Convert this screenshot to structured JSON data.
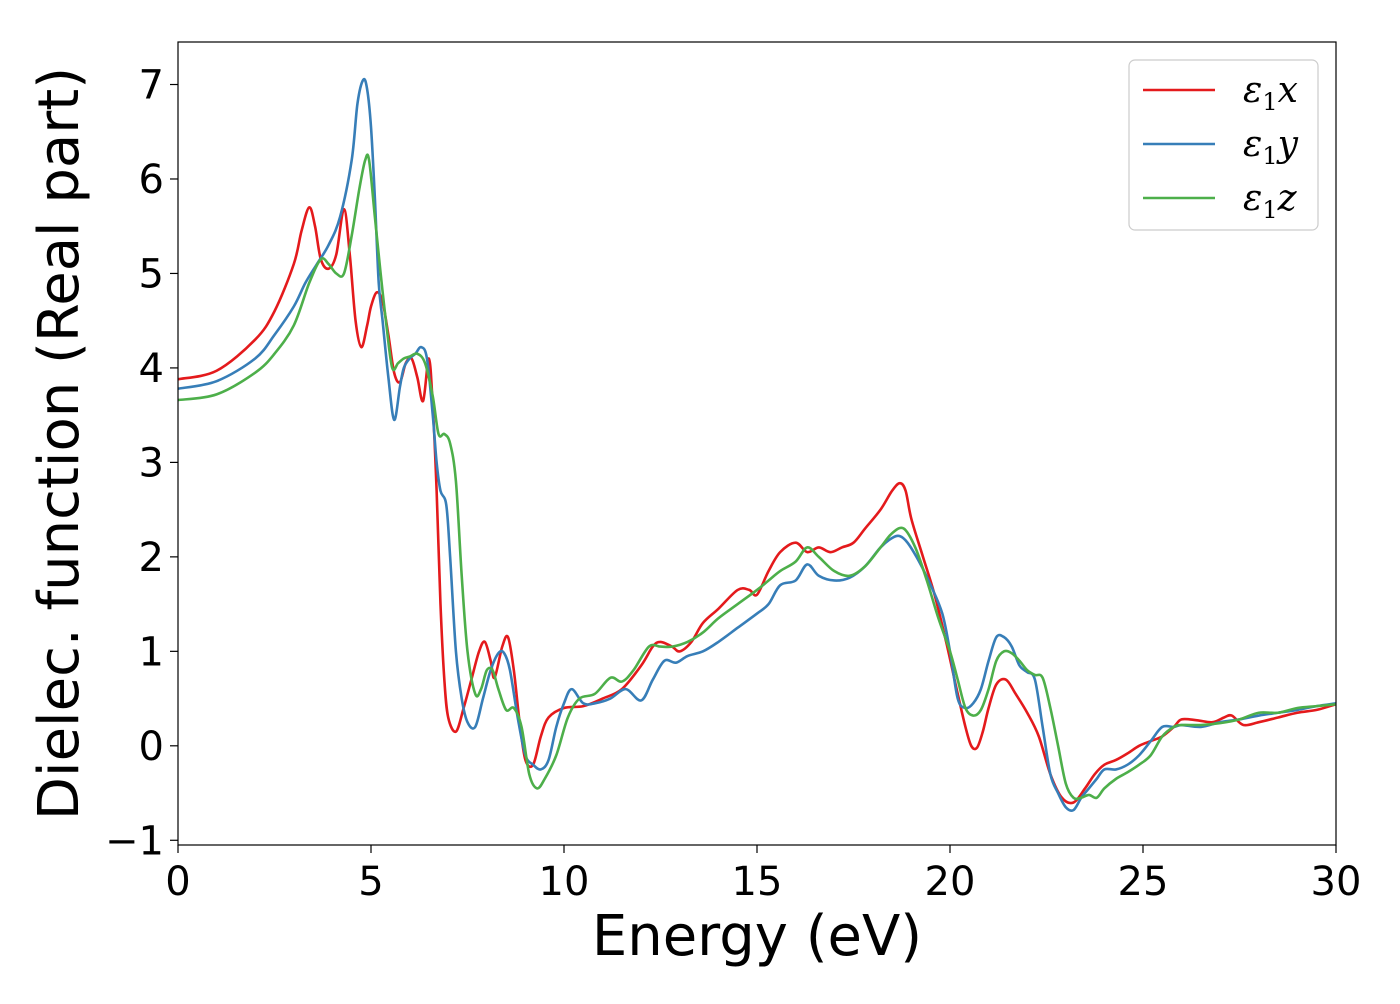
{
  "chart_data": {
    "type": "line",
    "title": "",
    "xlabel": "Energy (eV)",
    "ylabel": "Dielec. function (Real part)",
    "xlim": [
      0,
      30
    ],
    "ylim": [
      -1.05,
      7.45
    ],
    "xticks": [
      0,
      5,
      10,
      15,
      20,
      25,
      30
    ],
    "xtick_labels": [
      "0",
      "5",
      "10",
      "15",
      "20",
      "25",
      "30"
    ],
    "yticks": [
      -1,
      0,
      1,
      2,
      3,
      4,
      5,
      6,
      7
    ],
    "ytick_labels": [
      "−1",
      "0",
      "1",
      "2",
      "3",
      "4",
      "5",
      "6",
      "7"
    ],
    "grid": false,
    "legend_position": "top-right",
    "series": [
      {
        "name": "ε1x",
        "name_main": "ε",
        "name_sub": "1",
        "name_tail": "x",
        "color": "#e41a1c",
        "x": [
          0,
          1,
          2,
          2.5,
          3,
          3.2,
          3.4,
          3.55,
          3.7,
          3.9,
          4.1,
          4.3,
          4.45,
          4.6,
          4.75,
          4.9,
          5.0,
          5.15,
          5.3,
          5.45,
          5.6,
          5.75,
          5.9,
          6.05,
          6.2,
          6.35,
          6.5,
          6.6,
          6.7,
          6.8,
          6.9,
          7.0,
          7.2,
          7.4,
          7.6,
          7.8,
          7.95,
          8.1,
          8.2,
          8.4,
          8.55,
          8.7,
          8.85,
          9.0,
          9.2,
          9.4,
          9.6,
          10.0,
          10.5,
          11.0,
          11.5,
          12.0,
          12.3,
          12.5,
          12.8,
          13.0,
          13.3,
          13.6,
          14.0,
          14.5,
          14.8,
          15.0,
          15.3,
          15.6,
          16.0,
          16.3,
          16.6,
          16.9,
          17.2,
          17.5,
          17.8,
          18.2,
          18.5,
          18.7,
          18.85,
          19.0,
          19.3,
          19.6,
          19.9,
          20.2,
          20.4,
          20.55,
          20.7,
          20.85,
          21.0,
          21.2,
          21.45,
          21.7,
          22.0,
          22.3,
          22.6,
          22.9,
          23.2,
          23.5,
          23.75,
          24.0,
          24.3,
          24.6,
          24.9,
          25.2,
          25.5,
          25.8,
          26.0,
          26.4,
          26.8,
          27.1,
          27.3,
          27.6,
          28.0,
          28.5,
          29.0,
          29.5,
          30
        ],
        "y": [
          3.88,
          3.97,
          4.3,
          4.6,
          5.1,
          5.45,
          5.7,
          5.5,
          5.15,
          5.05,
          5.2,
          5.68,
          5.2,
          4.5,
          4.22,
          4.45,
          4.65,
          4.8,
          4.7,
          4.35,
          3.95,
          3.85,
          4.05,
          4.1,
          3.9,
          3.65,
          4.1,
          3.6,
          2.7,
          1.5,
          0.7,
          0.3,
          0.15,
          0.4,
          0.7,
          1.0,
          1.1,
          0.9,
          0.72,
          1.05,
          1.15,
          0.8,
          0.25,
          -0.15,
          -0.2,
          0.1,
          0.3,
          0.4,
          0.42,
          0.5,
          0.6,
          0.85,
          1.05,
          1.1,
          1.05,
          1.0,
          1.1,
          1.3,
          1.45,
          1.65,
          1.65,
          1.6,
          1.85,
          2.05,
          2.15,
          2.05,
          2.1,
          2.05,
          2.1,
          2.15,
          2.3,
          2.5,
          2.7,
          2.78,
          2.7,
          2.4,
          2.0,
          1.6,
          1.1,
          0.55,
          0.2,
          0.0,
          -0.02,
          0.15,
          0.4,
          0.65,
          0.7,
          0.55,
          0.35,
          0.1,
          -0.3,
          -0.55,
          -0.6,
          -0.45,
          -0.3,
          -0.2,
          -0.15,
          -0.08,
          0.0,
          0.05,
          0.1,
          0.2,
          0.28,
          0.27,
          0.25,
          0.3,
          0.32,
          0.22,
          0.25,
          0.3,
          0.35,
          0.38,
          0.44
        ]
      },
      {
        "name": "ε1y",
        "name_main": "ε",
        "name_sub": "1",
        "name_tail": "y",
        "color": "#377eb8",
        "x": [
          0,
          1,
          2,
          2.5,
          3,
          3.3,
          3.6,
          3.9,
          4.2,
          4.5,
          4.65,
          4.8,
          4.9,
          5.0,
          5.1,
          5.2,
          5.3,
          5.45,
          5.6,
          5.75,
          5.85,
          6.0,
          6.15,
          6.3,
          6.45,
          6.6,
          6.7,
          6.8,
          6.95,
          7.05,
          7.2,
          7.35,
          7.5,
          7.7,
          7.9,
          8.1,
          8.3,
          8.45,
          8.6,
          8.8,
          9.0,
          9.2,
          9.4,
          9.6,
          9.8,
          10.0,
          10.2,
          10.5,
          10.8,
          11.2,
          11.6,
          12.0,
          12.3,
          12.6,
          12.9,
          13.2,
          13.6,
          14.0,
          14.5,
          15.0,
          15.3,
          15.6,
          16.0,
          16.3,
          16.6,
          17.0,
          17.4,
          17.8,
          18.2,
          18.5,
          18.7,
          18.9,
          19.2,
          19.5,
          19.8,
          20.0,
          20.2,
          20.4,
          20.6,
          20.8,
          21.0,
          21.2,
          21.4,
          21.6,
          21.8,
          22.0,
          22.2,
          22.4,
          22.6,
          22.8,
          23.0,
          23.2,
          23.4,
          23.6,
          23.8,
          24.0,
          24.3,
          24.6,
          24.9,
          25.2,
          25.5,
          25.8,
          26.0,
          26.5,
          27.0,
          27.5,
          28.0,
          28.5,
          29.0,
          29.5,
          30
        ],
        "y": [
          3.78,
          3.86,
          4.1,
          4.35,
          4.65,
          4.9,
          5.1,
          5.3,
          5.6,
          6.2,
          6.8,
          7.05,
          6.95,
          6.55,
          5.8,
          4.9,
          4.5,
          3.9,
          3.45,
          3.8,
          4.0,
          4.1,
          4.15,
          4.22,
          4.1,
          3.5,
          3.0,
          2.7,
          2.55,
          2.0,
          1.0,
          0.5,
          0.25,
          0.2,
          0.5,
          0.8,
          0.98,
          0.98,
          0.8,
          0.3,
          -0.1,
          -0.2,
          -0.25,
          -0.15,
          0.2,
          0.45,
          0.6,
          0.45,
          0.45,
          0.5,
          0.6,
          0.48,
          0.7,
          0.9,
          0.88,
          0.95,
          1.0,
          1.1,
          1.25,
          1.4,
          1.5,
          1.7,
          1.75,
          1.92,
          1.8,
          1.75,
          1.78,
          1.9,
          2.1,
          2.2,
          2.22,
          2.15,
          1.95,
          1.7,
          1.4,
          1.0,
          0.5,
          0.4,
          0.45,
          0.6,
          0.9,
          1.15,
          1.15,
          1.05,
          0.85,
          0.78,
          0.7,
          0.2,
          -0.3,
          -0.5,
          -0.65,
          -0.68,
          -0.55,
          -0.45,
          -0.35,
          -0.25,
          -0.25,
          -0.2,
          -0.1,
          0.05,
          0.2,
          0.2,
          0.22,
          0.2,
          0.25,
          0.28,
          0.32,
          0.35,
          0.38,
          0.42,
          0.45
        ]
      },
      {
        "name": "ε1z",
        "name_main": "ε",
        "name_sub": "1",
        "name_tail": "z",
        "color": "#4daf4a",
        "x": [
          0,
          1,
          2,
          2.5,
          3,
          3.4,
          3.7,
          3.9,
          4.1,
          4.3,
          4.5,
          4.7,
          4.85,
          4.95,
          5.1,
          5.25,
          5.4,
          5.55,
          5.7,
          5.85,
          6.0,
          6.2,
          6.4,
          6.6,
          6.75,
          6.9,
          7.05,
          7.2,
          7.35,
          7.5,
          7.7,
          7.85,
          8.0,
          8.15,
          8.3,
          8.5,
          8.7,
          8.9,
          9.1,
          9.3,
          9.5,
          9.8,
          10.1,
          10.4,
          10.8,
          11.2,
          11.5,
          11.8,
          12.2,
          12.5,
          12.8,
          13.2,
          13.6,
          14.0,
          14.5,
          15.0,
          15.3,
          15.6,
          16.0,
          16.3,
          16.6,
          17.0,
          17.4,
          17.8,
          18.2,
          18.5,
          18.8,
          19.1,
          19.4,
          19.7,
          20.0,
          20.2,
          20.4,
          20.6,
          20.8,
          21.0,
          21.2,
          21.4,
          21.6,
          21.8,
          22.0,
          22.2,
          22.4,
          22.6,
          22.8,
          23.0,
          23.2,
          23.4,
          23.6,
          23.8,
          24.0,
          24.3,
          24.6,
          24.9,
          25.2,
          25.5,
          25.8,
          26.0,
          26.5,
          27.0,
          27.5,
          28.0,
          28.5,
          29.0,
          29.5,
          30
        ],
        "y": [
          3.66,
          3.72,
          3.95,
          4.15,
          4.45,
          4.9,
          5.15,
          5.1,
          5.0,
          5.0,
          5.4,
          5.9,
          6.2,
          6.2,
          5.6,
          5.0,
          4.45,
          4.0,
          4.05,
          4.1,
          4.12,
          4.15,
          4.05,
          3.7,
          3.3,
          3.3,
          3.2,
          2.8,
          1.8,
          1.0,
          0.55,
          0.6,
          0.8,
          0.8,
          0.6,
          0.38,
          0.4,
          0.2,
          -0.3,
          -0.45,
          -0.35,
          -0.1,
          0.3,
          0.5,
          0.55,
          0.72,
          0.68,
          0.8,
          1.05,
          1.05,
          1.05,
          1.1,
          1.2,
          1.35,
          1.5,
          1.65,
          1.75,
          1.85,
          1.95,
          2.1,
          2.0,
          1.85,
          1.8,
          1.9,
          2.1,
          2.25,
          2.3,
          2.1,
          1.75,
          1.35,
          1.0,
          0.7,
          0.4,
          0.32,
          0.38,
          0.6,
          0.9,
          1.0,
          0.98,
          0.9,
          0.8,
          0.75,
          0.72,
          0.4,
          0.0,
          -0.4,
          -0.55,
          -0.55,
          -0.52,
          -0.55,
          -0.45,
          -0.35,
          -0.28,
          -0.2,
          -0.1,
          0.1,
          0.2,
          0.22,
          0.22,
          0.24,
          0.28,
          0.35,
          0.35,
          0.4,
          0.42,
          0.44
        ]
      }
    ]
  }
}
